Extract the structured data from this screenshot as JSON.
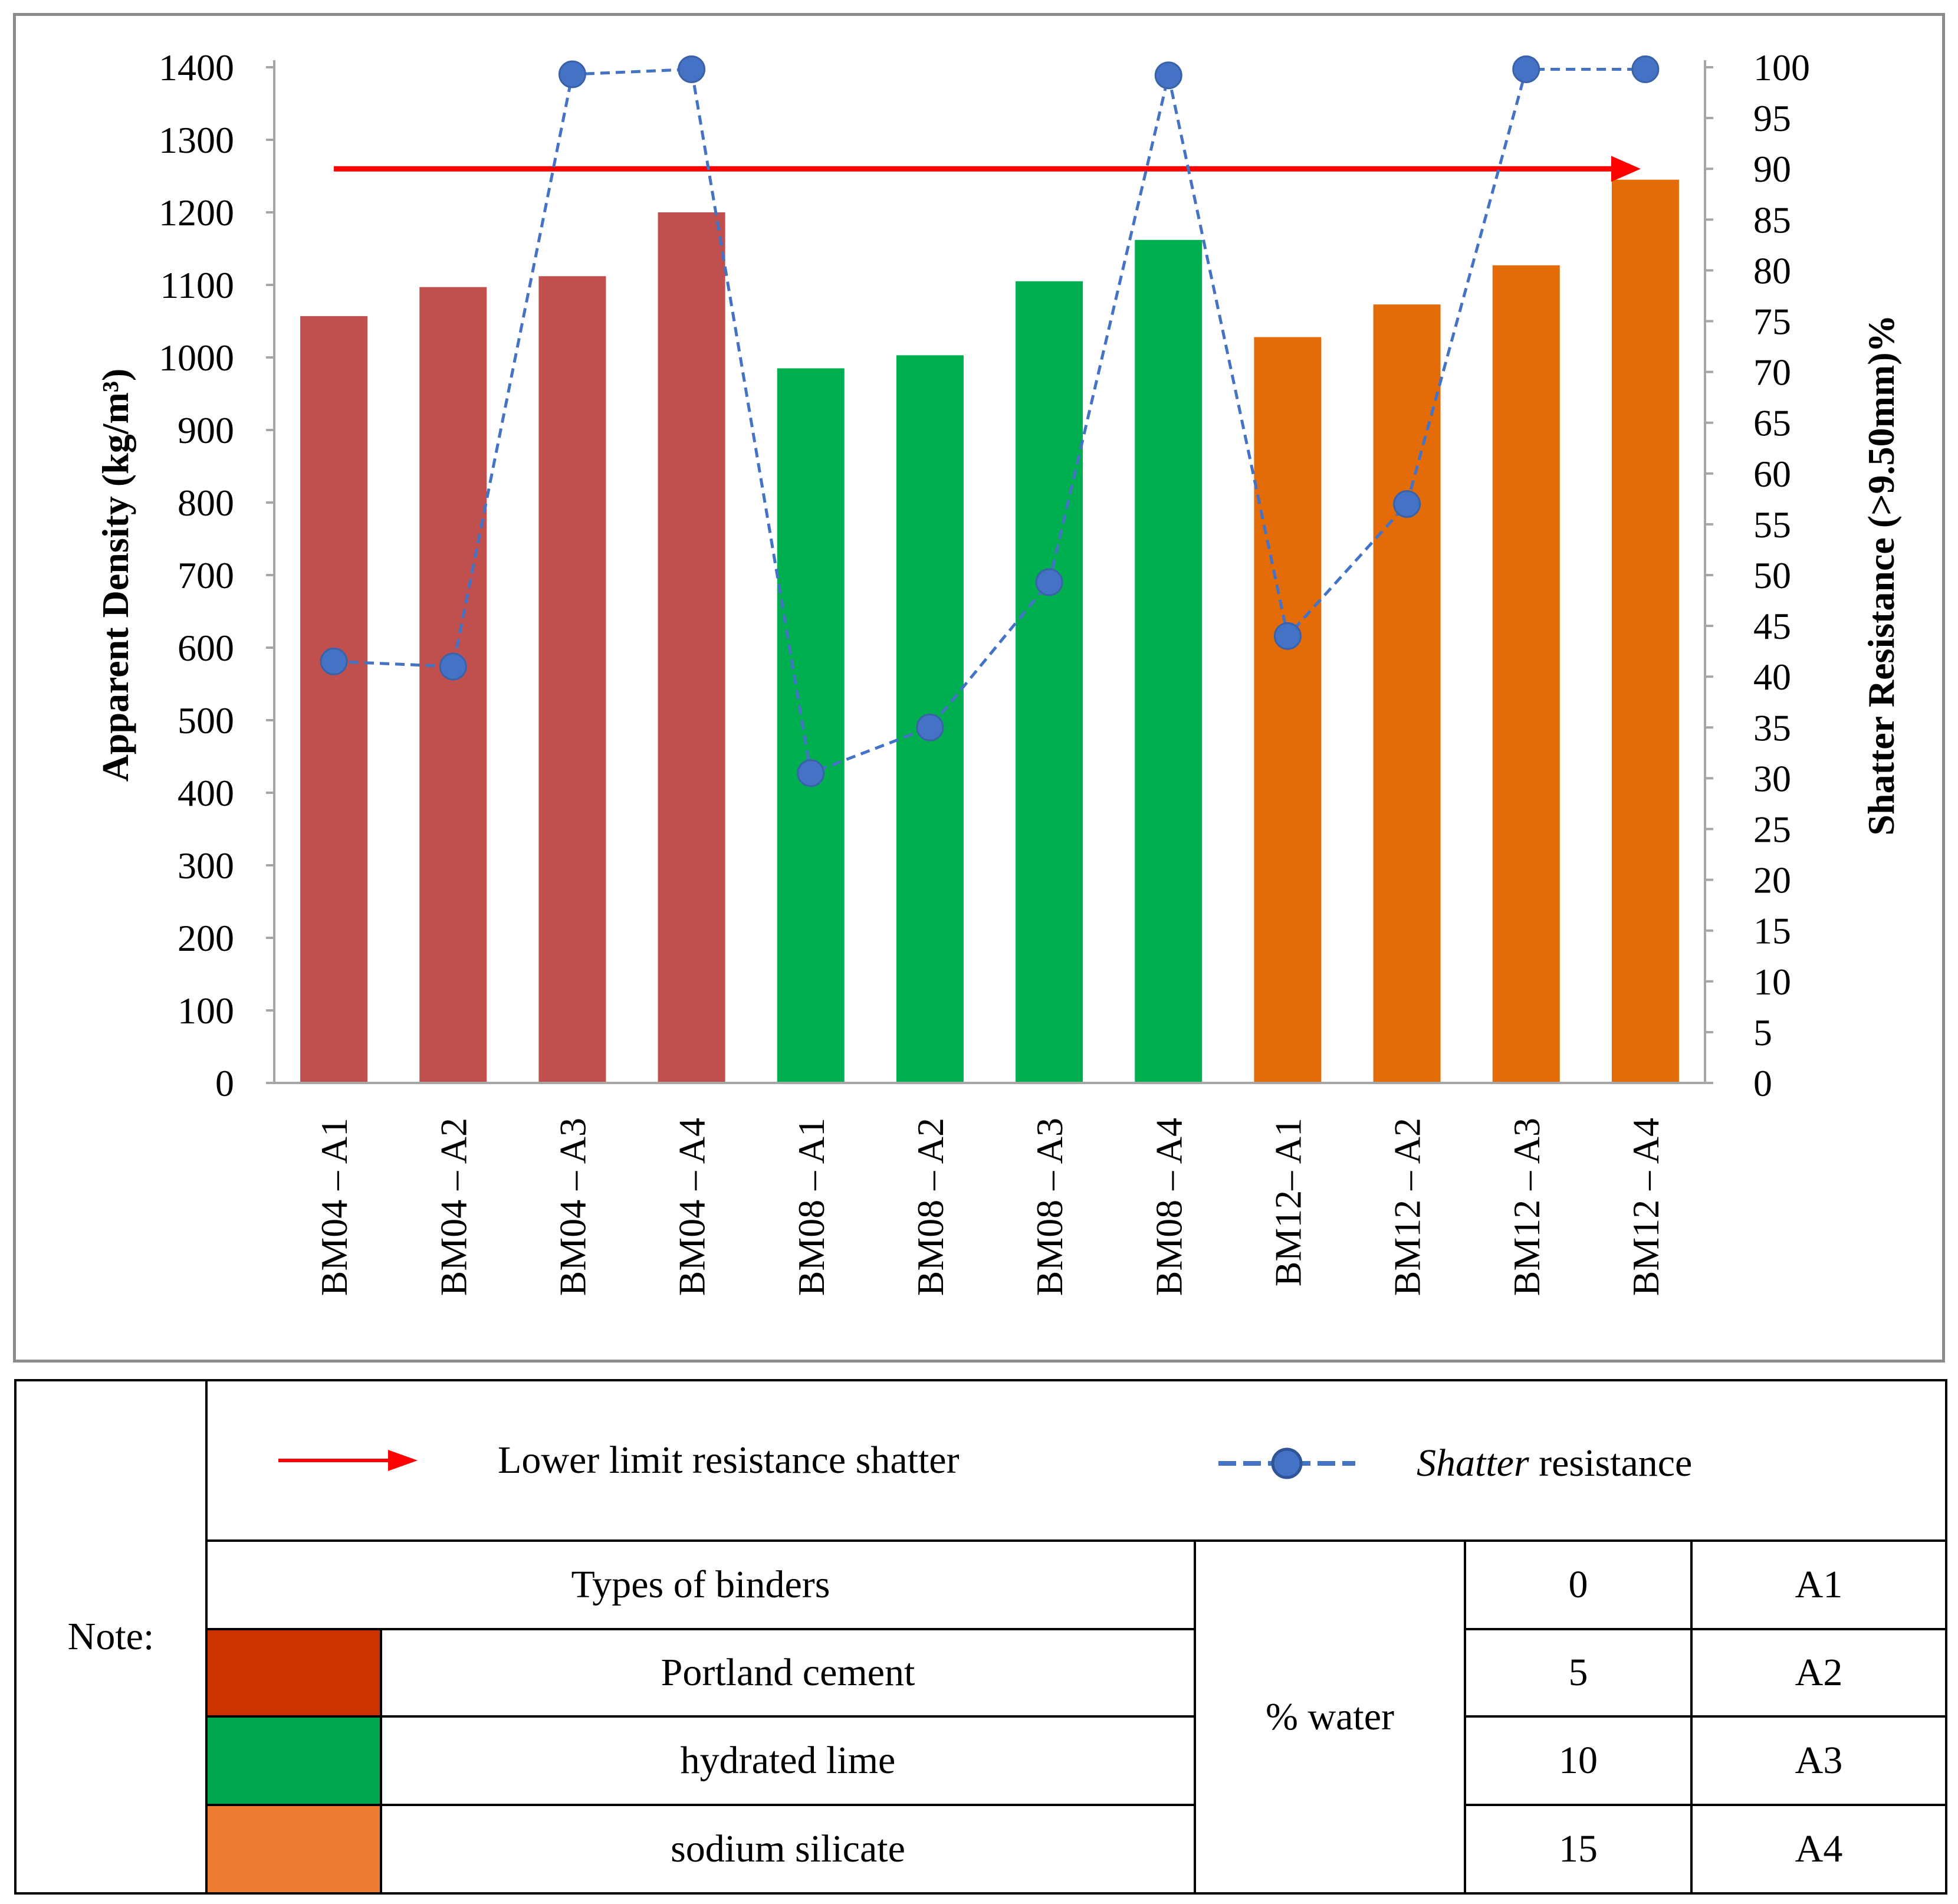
{
  "chart_data": {
    "type": "bar+line",
    "categories": [
      "BM04 – A1",
      "BM04 – A2",
      "BM04 – A3",
      "BM04 – A4",
      "BM08 – A1",
      "BM08 – A2",
      "BM08 – A3",
      "BM08 – A4",
      "BM12– A1",
      "BM12 – A2",
      "BM12 – A3",
      "BM12 – A4"
    ],
    "bar_series": {
      "name": "Apparent Density",
      "values": [
        1057,
        1097,
        1112,
        1200,
        985,
        1003,
        1105,
        1162,
        1028,
        1073,
        1127,
        1245
      ],
      "colors": [
        "#c0504d",
        "#c0504d",
        "#c0504d",
        "#c0504d",
        "#00b050",
        "#00b050",
        "#00b050",
        "#00b050",
        "#e36c09",
        "#e36c09",
        "#e36c09",
        "#e36c09"
      ]
    },
    "line_series": {
      "name": "Shatter resistance",
      "values": [
        41.5,
        41,
        99.3,
        99.8,
        30.5,
        35,
        49.3,
        99.2,
        44,
        57,
        99.8,
        99.8
      ],
      "color": "#4472c4"
    },
    "threshold": {
      "name": "Lower limit resistance shatter",
      "value": 90,
      "color": "#ff0000"
    },
    "y_left": {
      "label": "Apparent Density (kg/m³)",
      "min": 0,
      "max": 1400,
      "step": 100,
      "ticks": [
        "0",
        "100",
        "200",
        "300",
        "400",
        "500",
        "600",
        "700",
        "800",
        "900",
        "1000",
        "1100",
        "1200",
        "1300",
        "1400"
      ]
    },
    "y_right": {
      "label": "Shatter Resistance (>9.50mm)%",
      "min": 0,
      "max": 100,
      "step": 5,
      "ticks": [
        "0",
        "5",
        "10",
        "15",
        "20",
        "25",
        "30",
        "35",
        "40",
        "45",
        "50",
        "55",
        "60",
        "65",
        "70",
        "75",
        "80",
        "85",
        "90",
        "95",
        "100"
      ]
    },
    "grid": false
  },
  "note": {
    "label": "Note:",
    "legend": [
      {
        "type": "arrow",
        "text": "Lower limit resistance shatter"
      },
      {
        "type": "marker-line",
        "text_italic": "Shatter",
        "text_rest": " resistance"
      }
    ],
    "binders_header": "Types of binders",
    "binders": [
      {
        "name": "Portland cement",
        "color": "#cc3300"
      },
      {
        "name": "hydrated lime",
        "color": "#00a550"
      },
      {
        "name": "sodium silicate",
        "color": "#ed7d31"
      }
    ],
    "water_label": "% water",
    "water_levels": [
      {
        "value": "0",
        "code": "A1"
      },
      {
        "value": "5",
        "code": "A2"
      },
      {
        "value": "10",
        "code": "A3"
      },
      {
        "value": "15",
        "code": "A4"
      }
    ]
  }
}
